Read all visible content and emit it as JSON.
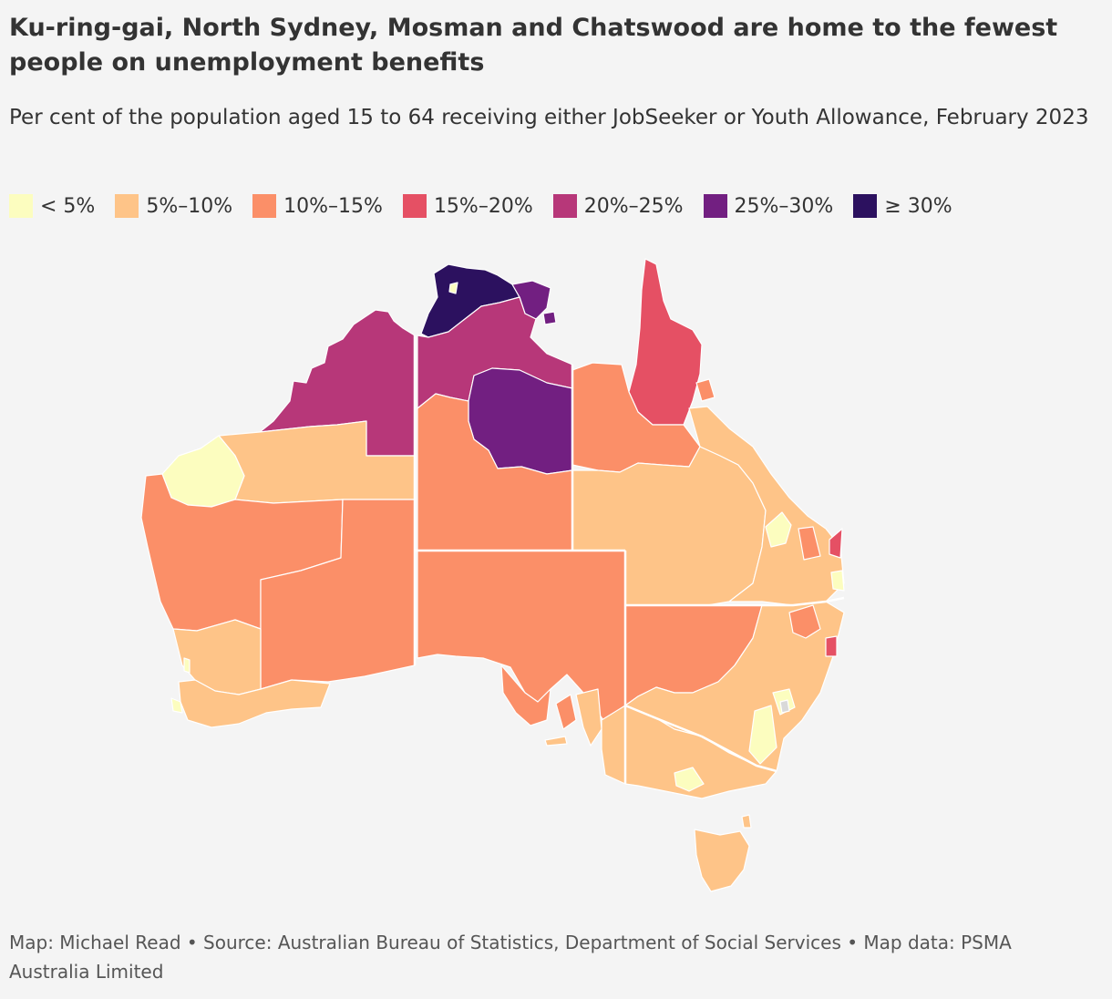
{
  "title": "Ku-ring-gai, North Sydney, Mosman and Chatswood are home to the fewest people on unemployment benefits",
  "subtitle": "Per cent of the population aged 15 to 64 receiving either JobSeeker or Youth Allowance, February 2023",
  "legend": [
    {
      "label": "< 5%",
      "color": "#fcfdbf"
    },
    {
      "label": "5%–10%",
      "color": "#fec488"
    },
    {
      "label": "10%–15%",
      "color": "#fb8f68"
    },
    {
      "label": "15%–20%",
      "color": "#e55064"
    },
    {
      "label": "20%–25%",
      "color": "#b73779"
    },
    {
      "label": "25%–30%",
      "color": "#721f81"
    },
    {
      "label": "≥ 30%",
      "color": "#2c115f"
    }
  ],
  "colors": {
    "no_data": "#d9d9d9",
    "border": "#ffffff",
    "background": "#f4f4f4"
  },
  "credit": "Map: Michael Read • Source: Australian Bureau of Statistics, Department of Social Services • Map data: PSMA Australia Limited"
}
